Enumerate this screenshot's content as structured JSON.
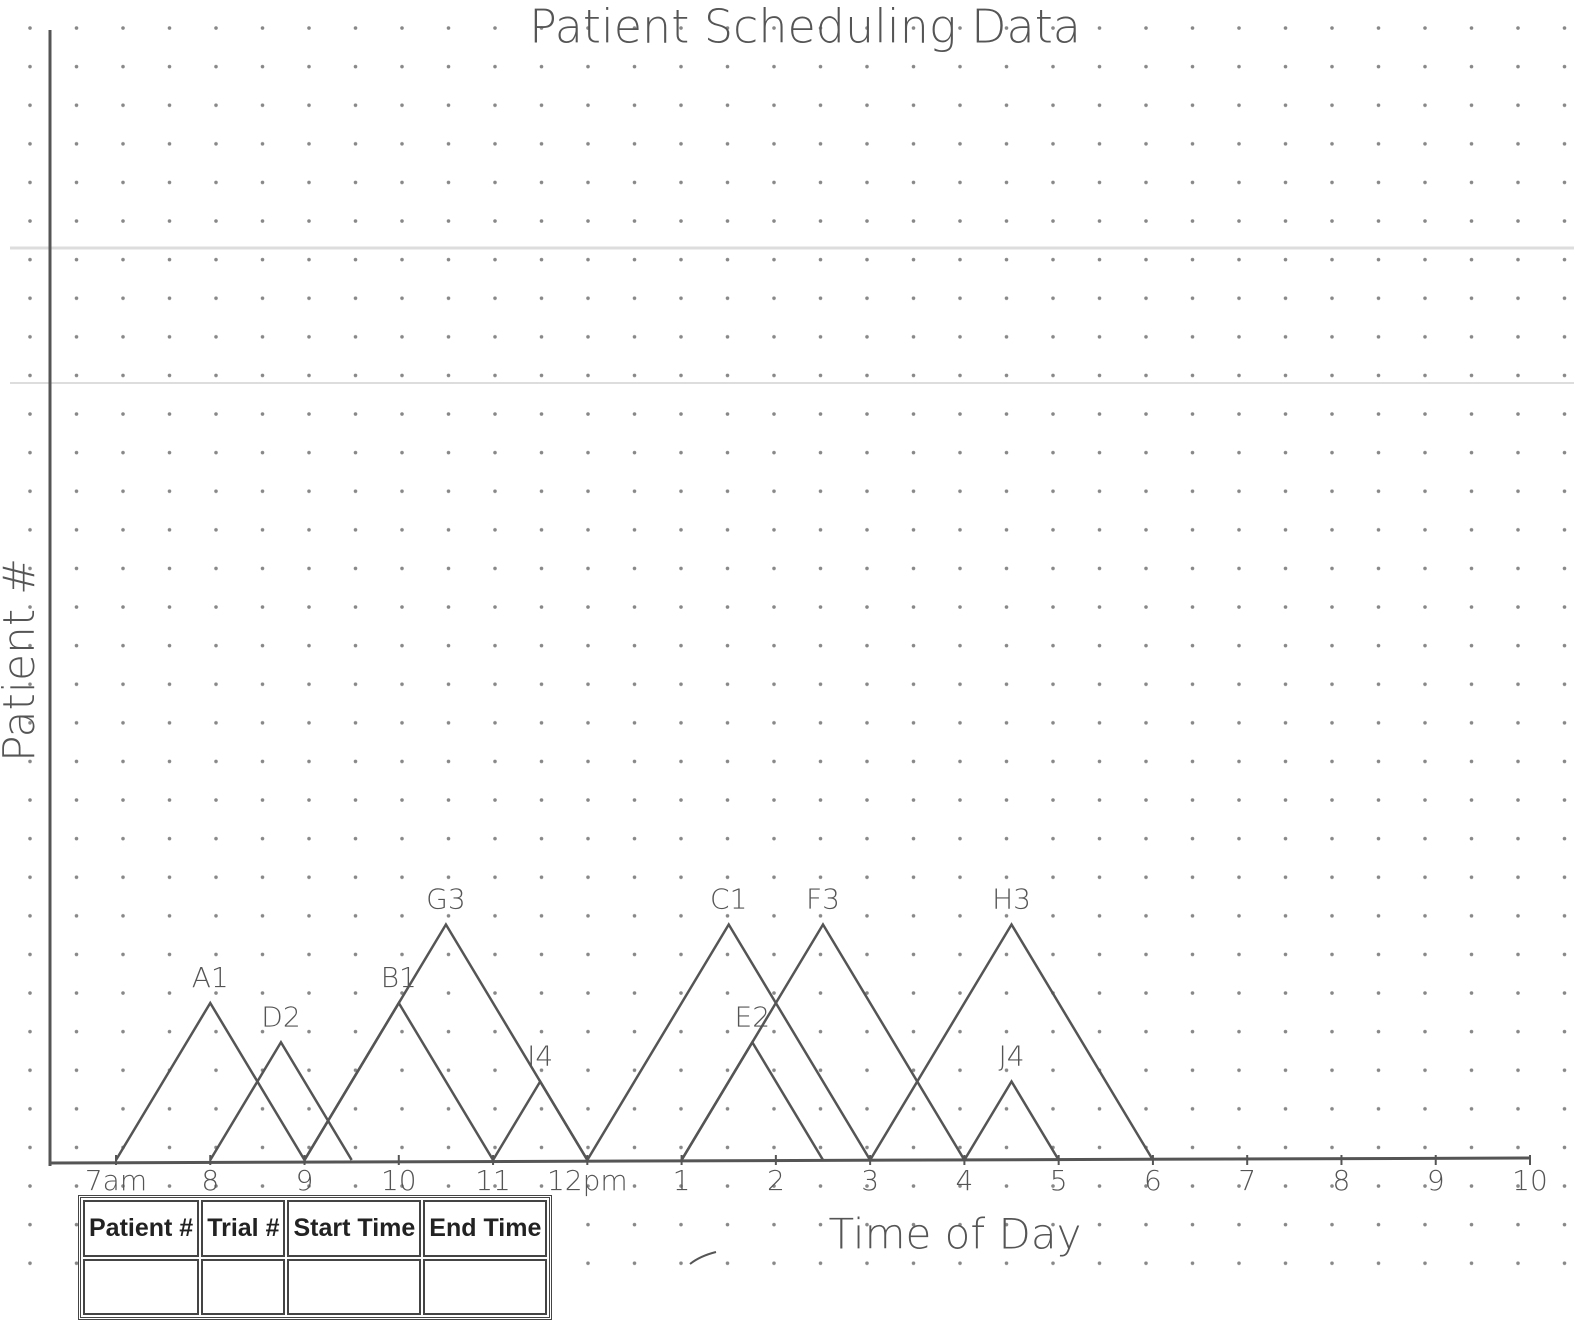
{
  "chart_data": {
    "type": "triangle",
    "title": "Patient Scheduling Data",
    "x_label": "Time of Day",
    "y_label": "Patient #",
    "xlim": [
      6.3,
      22
    ],
    "xticks": [
      {
        "value": 7,
        "label": "7am"
      },
      8,
      9,
      10,
      11,
      {
        "value": 12,
        "label": "12pm"
      },
      {
        "value": 13,
        "label": "1"
      },
      {
        "value": 14,
        "label": "2"
      },
      {
        "value": 15,
        "label": "3"
      },
      {
        "value": 16,
        "label": "4"
      },
      {
        "value": 17,
        "label": "5"
      },
      {
        "value": 18,
        "label": "6"
      },
      {
        "value": 19,
        "label": "7"
      },
      {
        "value": 20,
        "label": "8"
      },
      {
        "value": 21,
        "label": "9"
      },
      {
        "value": 22,
        "label": "10"
      }
    ],
    "color": "#555555",
    "trials": [
      {
        "name": "A1",
        "start": 7,
        "end": 9
      },
      {
        "name": "D2",
        "start": 8,
        "end": 9.5
      },
      {
        "name": "B1",
        "start": 9,
        "end": 11
      },
      {
        "name": "G3",
        "start": 9,
        "end": 12
      },
      {
        "name": "I4",
        "start": 11,
        "end": 12
      },
      {
        "name": "C1",
        "start": 12,
        "end": 15
      },
      {
        "name": "E2",
        "start": 13,
        "end": 14.5
      },
      {
        "name": "F3",
        "start": 13,
        "end": 16
      },
      {
        "name": "H3",
        "start": 15,
        "end": 18
      },
      {
        "name": "J4",
        "start": 16,
        "end": 17
      }
    ]
  },
  "table": {
    "header": [
      "Patient #",
      "Trial #",
      "Start Time",
      "End Time"
    ]
  }
}
